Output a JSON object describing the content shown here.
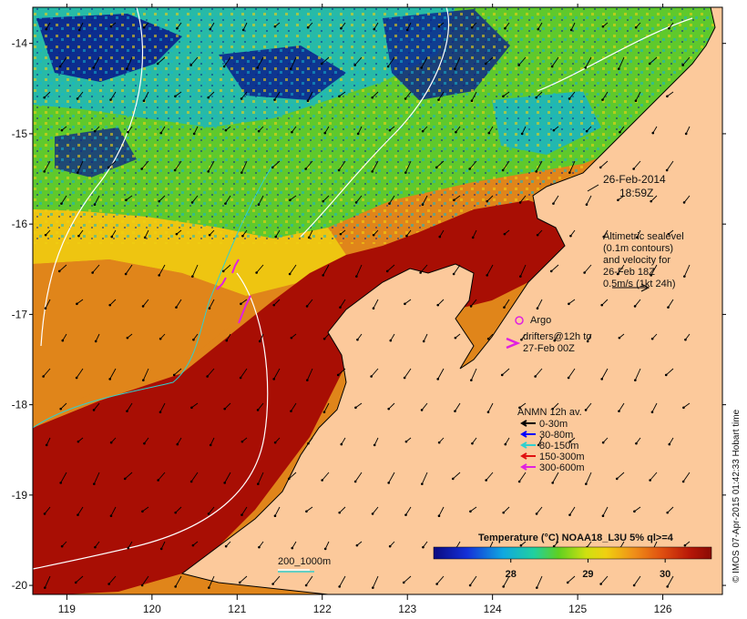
{
  "map": {
    "lon_ticks": [
      "119",
      "120",
      "121",
      "122",
      "123",
      "124",
      "125",
      "126"
    ],
    "lat_ticks": [
      "-14",
      "-15",
      "-16",
      "-17",
      "-18",
      "-19",
      "-20"
    ],
    "lon_range": [
      118.6,
      126.7
    ],
    "lat_range": [
      -13.6,
      -20.1
    ],
    "colors": {
      "land": "#fcc99b",
      "sst_warm": "#a80e04",
      "sst_orange": "#e0851a",
      "sst_yellow": "#f0d010",
      "sst_green": "#5fc92c",
      "sst_cyan": "#14b4d0",
      "sst_blue": "#0a1e8c"
    }
  },
  "timestamp": {
    "date": "26-Feb-2014",
    "time": "18:59Z"
  },
  "altimetry_note": {
    "lines": [
      "Altimetric sealevel",
      "(0.1m contours)",
      "and velocity for",
      "26-Feb 18Z",
      "0.5m/s (1kt 24h)"
    ]
  },
  "argo": {
    "label": "Argo",
    "color": "#e020e0"
  },
  "drifters": {
    "lines": [
      "drifters@12h to",
      "27-Feb 00Z"
    ],
    "color": "#e020e0"
  },
  "anmn": {
    "title": "ANMN 12h av.",
    "entries": [
      {
        "label": "0-30m",
        "color": "#000000"
      },
      {
        "label": "30-80m",
        "color": "#0000ff"
      },
      {
        "label": "80-150m",
        "color": "#30d0d0"
      },
      {
        "label": "150-300m",
        "color": "#e01010"
      },
      {
        "label": "300-600m",
        "color": "#e020e0"
      }
    ]
  },
  "contour_legend": {
    "label": "200_1000m"
  },
  "colorbar": {
    "title": "Temperature (°C) NOAA18_L3U 5% ql>=4",
    "tick_labels": [
      "28",
      "29",
      "30"
    ],
    "range": [
      27.0,
      30.6
    ]
  },
  "credit": "© IMOS 07-Apr-2015 01:42:33 Hobart time"
}
